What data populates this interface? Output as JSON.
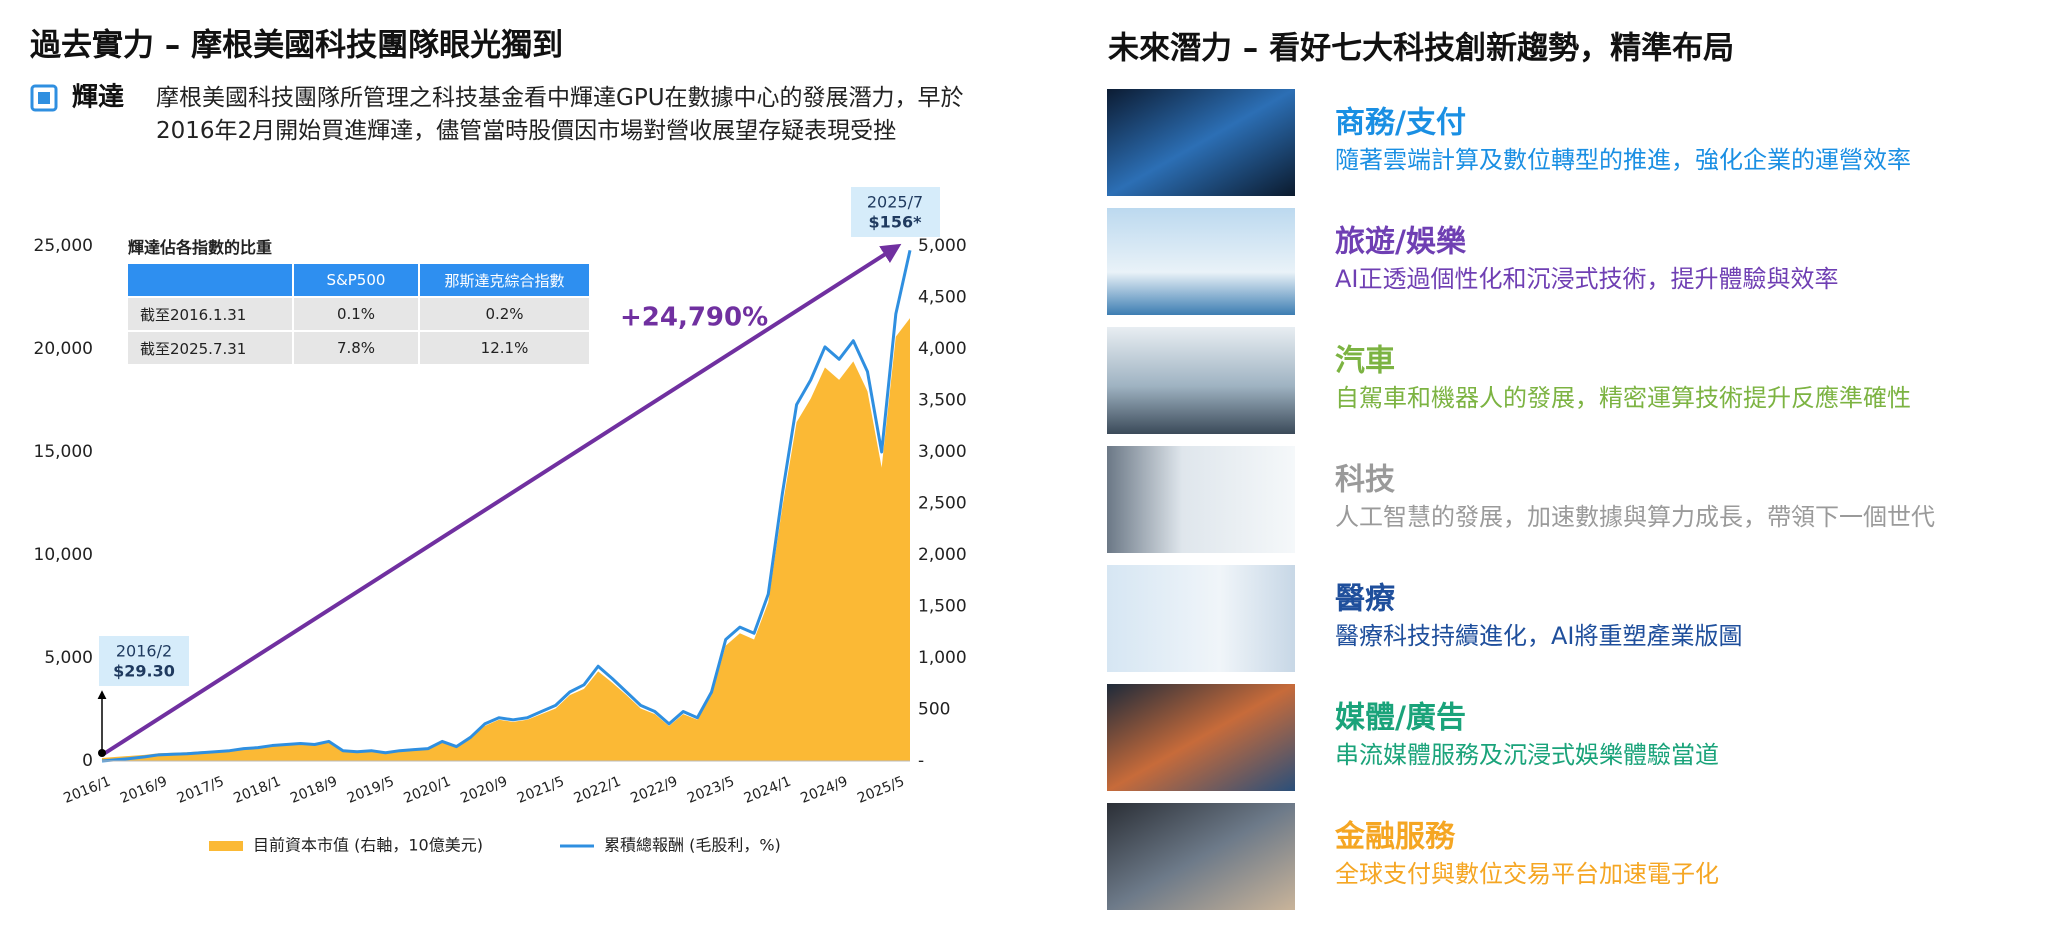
{
  "left_panel": {
    "title": "過去實力 – 摩根美國科技團隊眼光獨到",
    "nvidia": {
      "label": "輝達",
      "text": "摩根美國科技團隊所管理之科技基金看中輝達GPU在數據中心的發展潛力，早於2016年2月開始買進輝達，儘管當時股價因市場對營收展望存疑表現受挫"
    }
  },
  "chart_data": {
    "type": "line",
    "categories": [
      "2016/1",
      null,
      null,
      null,
      "2016/9",
      null,
      null,
      null,
      "2017/5",
      null,
      null,
      null,
      "2018/1",
      null,
      null,
      null,
      "2018/9",
      null,
      null,
      null,
      "2019/5",
      null,
      null,
      null,
      "2020/1",
      null,
      null,
      null,
      "2020/9",
      null,
      null,
      null,
      "2021/5",
      null,
      null,
      null,
      "2022/1",
      null,
      null,
      null,
      "2022/9",
      null,
      null,
      null,
      "2023/5",
      null,
      null,
      null,
      "2024/1",
      null,
      null,
      null,
      "2024/9",
      null,
      null,
      null,
      "2025/5",
      null
    ],
    "series": [
      {
        "name": "目前資本市值 (右軸，10億美元)",
        "color": "#fbb935",
        "axis": "y2",
        "values": [
          29,
          40,
          50,
          60,
          75,
          80,
          85,
          95,
          100,
          105,
          120,
          130,
          145,
          155,
          165,
          155,
          180,
          100,
          90,
          100,
          80,
          100,
          105,
          115,
          180,
          135,
          220,
          340,
          400,
          380,
          400,
          455,
          510,
          640,
          700,
          870,
          760,
          640,
          510,
          455,
          340,
          455,
          400,
          640,
          1120,
          1240,
          1180,
          1540,
          2470,
          3290,
          3520,
          3820,
          3700,
          3880,
          3590,
          2850,
          4120,
          4300
        ]
      },
      {
        "name": "累積總報酬 (毛股利，%)",
        "color": "#2f8fe0",
        "values": [
          0,
          60,
          120,
          200,
          300,
          330,
          350,
          400,
          450,
          500,
          600,
          650,
          750,
          800,
          850,
          800,
          950,
          500,
          450,
          500,
          400,
          500,
          550,
          600,
          950,
          700,
          1150,
          1800,
          2100,
          2000,
          2100,
          2400,
          2700,
          3350,
          3700,
          4600,
          4000,
          3350,
          2700,
          2400,
          1800,
          2400,
          2100,
          3350,
          5900,
          6500,
          6200,
          8100,
          13000,
          17300,
          18500,
          20100,
          19500,
          20400,
          18900,
          15000,
          21700,
          24790
        ]
      }
    ],
    "ylim": [
      0,
      25000
    ],
    "yticks": [
      0,
      {
        "value": 5000,
        "label": "5,000"
      },
      {
        "value": 10000,
        "label": "10,000"
      },
      {
        "value": 15000,
        "label": "15,000"
      },
      {
        "value": 20000,
        "label": "20,000"
      },
      {
        "value": 25000,
        "label": "25,000"
      }
    ],
    "y2lim": [
      0,
      5000
    ],
    "y2ticks": [
      {
        "value": 0,
        "label": "-"
      },
      500,
      {
        "value": 1000,
        "label": "1,000"
      },
      {
        "value": 1500,
        "label": "1,500"
      },
      {
        "value": 2000,
        "label": "2,000"
      },
      {
        "value": 2500,
        "label": "2,500"
      },
      {
        "value": 3000,
        "label": "3,000"
      },
      {
        "value": 3500,
        "label": "3,500"
      },
      {
        "value": 4000,
        "label": "4,000"
      },
      {
        "value": 4500,
        "label": "4,500"
      },
      {
        "value": 5000,
        "label": "5,000"
      }
    ],
    "start_label": [
      "2016/2",
      "$29.30"
    ],
    "end_label": [
      "2025/7",
      "$156*"
    ],
    "growth_label": "+24,790%",
    "inset_table": {
      "title": "輝達佔各指數的比重",
      "columns": [
        "S&P500",
        "那斯達克綜合指數"
      ],
      "rows": [
        [
          "截至2016.1.31",
          "0.1%",
          "0.2%"
        ],
        [
          "截至2025.7.31",
          "7.8%",
          "12.1%"
        ]
      ]
    }
  },
  "right_panel": {
    "title": "未來潛力 – 看好七大科技創新趨勢，精準布局",
    "items": [
      {
        "title": "商務/支付",
        "desc": "隨著雲端計算及數位轉型的推進，強化企業的運營效率",
        "color": "#1a8fe3"
      },
      {
        "title": "旅遊/娛樂",
        "desc": "AI正透過個性化和沉浸式技術，提升體驗與效率",
        "color": "#6f3fb3"
      },
      {
        "title": "汽車",
        "desc": "自駕車和機器人的發展，精密運算技術提升反應準確性",
        "color": "#7cb342"
      },
      {
        "title": "科技",
        "desc": "人工智慧的發展，加速數據與算力成長，帶領下一個世代",
        "color": "#9a9a9a"
      },
      {
        "title": "醫療",
        "desc": "醫療科技持續進化，AI將重塑產業版圖",
        "color": "#1f4f9c"
      },
      {
        "title": "媒體/廣告",
        "desc": "串流媒體服務及沉浸式娛樂體驗當道",
        "color": "#1aa37a"
      },
      {
        "title": "金融服務",
        "desc": "全球支付與數位交易平台加速電子化",
        "color": "#f5a623"
      }
    ]
  }
}
